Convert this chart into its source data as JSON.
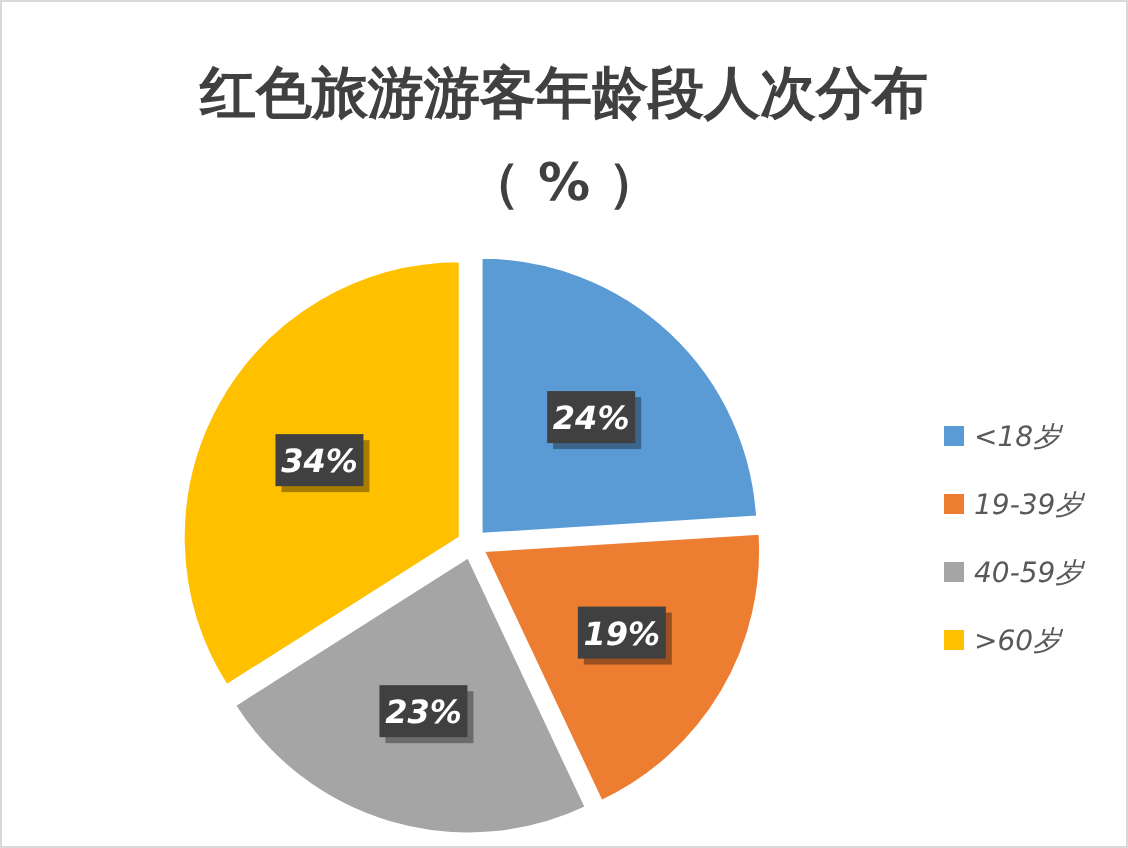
{
  "chart_data": {
    "type": "pie",
    "title": "红色旅游游客年龄段人次分布",
    "subtitle": "（ % ）",
    "categories": [
      "<18岁",
      "19-39岁",
      "40-59岁",
      ">60岁"
    ],
    "values": [
      24,
      19,
      23,
      34
    ],
    "colors": [
      "#5b9bd5",
      "#ed7d31",
      "#a5a5a5",
      "#ffc000"
    ],
    "value_labels": [
      "24%",
      "19%",
      "23%",
      "34%"
    ],
    "legend": "right"
  }
}
